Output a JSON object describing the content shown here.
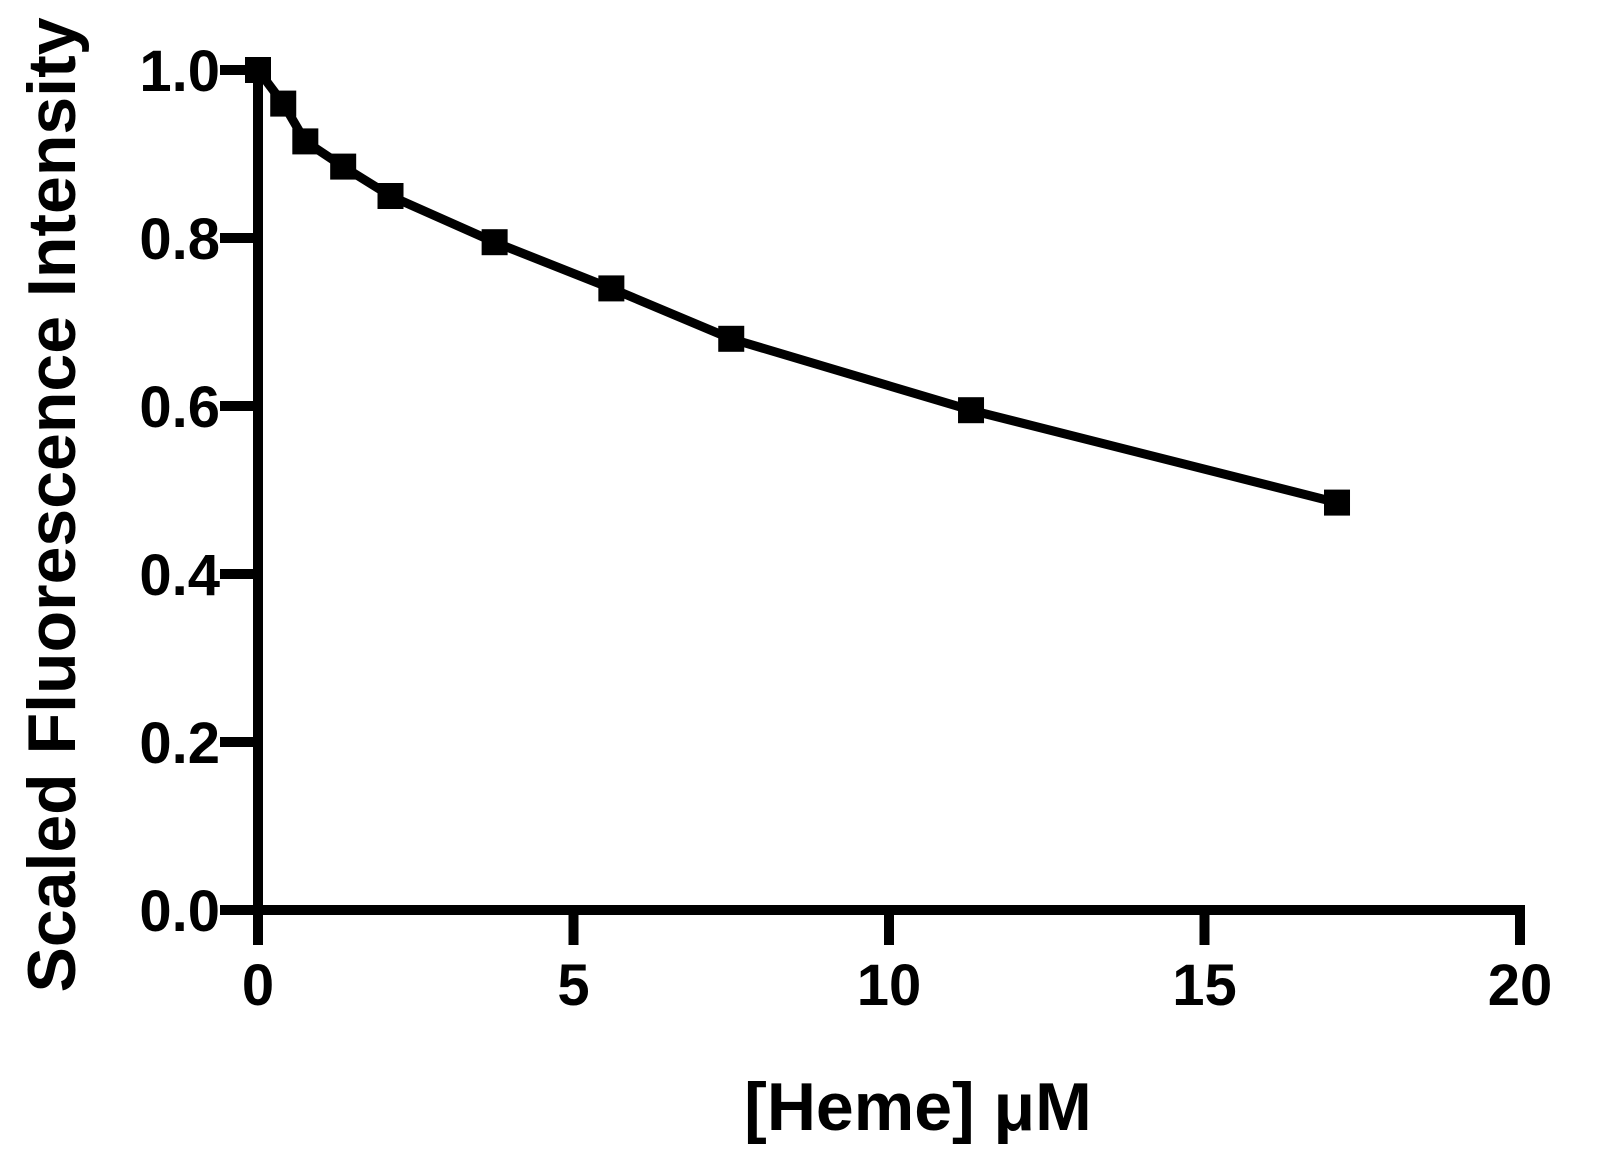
{
  "chart_data": {
    "type": "line",
    "title": "",
    "xlabel": "[Heme] μM",
    "ylabel": "Scaled Fluorescence Intensity",
    "xlim": [
      0,
      20
    ],
    "ylim": [
      0,
      1.0
    ],
    "x_ticks": [
      "0",
      "5",
      "10",
      "15",
      "20"
    ],
    "y_ticks": [
      "0.0",
      "0.2",
      "0.4",
      "0.6",
      "0.8",
      "1.0"
    ],
    "grid": false,
    "legend": "none",
    "series": [
      {
        "marker": "square",
        "color": "#000000",
        "x": [
          0,
          0.4,
          0.75,
          1.35,
          2.1,
          3.75,
          5.6,
          7.5,
          11.3,
          17.1
        ],
        "y": [
          1.0,
          0.96,
          0.915,
          0.885,
          0.85,
          0.795,
          0.74,
          0.68,
          0.595,
          0.485
        ]
      }
    ]
  }
}
